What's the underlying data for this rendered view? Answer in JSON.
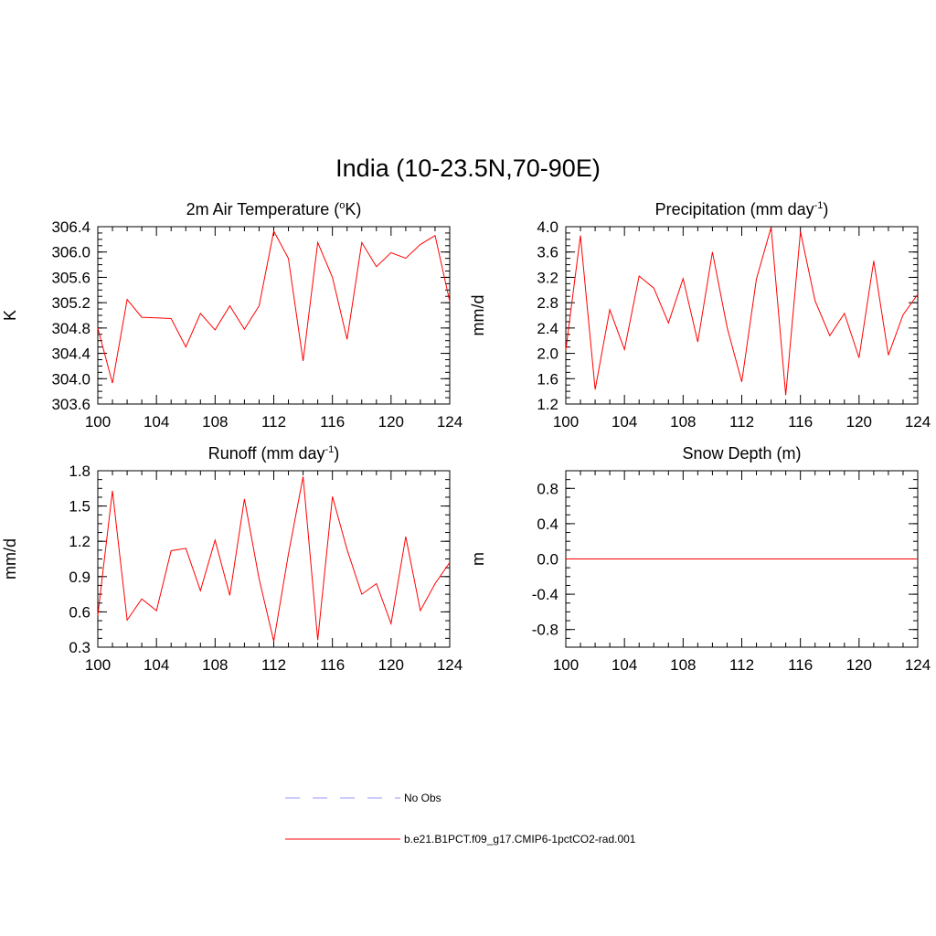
{
  "title": "India (10-23.5N,70-90E)",
  "colors": {
    "series": "#ff0000",
    "obs": "#9999ff",
    "axis": "#000000"
  },
  "legend": [
    {
      "label": "No Obs",
      "style": "dashed",
      "color": "#9999ff"
    },
    {
      "label": "b.e21.B1PCT.f09_g17.CMIP6-1pctCO2-rad.001",
      "style": "solid",
      "color": "#ff0000"
    }
  ],
  "chart_data": [
    {
      "type": "line",
      "title": "2m Air Temperature (",
      "title_sup": "o",
      "title_tail": "K)",
      "ylabel": "K",
      "xlim": [
        100,
        124
      ],
      "ylim": [
        303.6,
        306.4
      ],
      "xticks": [
        "100",
        "104",
        "108",
        "112",
        "116",
        "120",
        "124"
      ],
      "yticks": [
        "303.6",
        "304.0",
        "304.4",
        "304.8",
        "305.2",
        "305.6",
        "306.0",
        "306.4"
      ],
      "x": [
        100,
        101,
        102,
        103,
        104,
        105,
        106,
        107,
        108,
        109,
        110,
        111,
        112,
        113,
        114,
        115,
        116,
        117,
        118,
        119,
        120,
        121,
        122,
        123,
        124
      ],
      "series": [
        {
          "values": [
            304.8,
            303.93,
            305.25,
            304.97,
            304.96,
            304.95,
            304.5,
            305.03,
            304.77,
            305.15,
            304.78,
            305.15,
            306.33,
            305.9,
            304.28,
            306.15,
            305.6,
            304.62,
            306.15,
            305.77,
            305.99,
            305.9,
            306.12,
            306.26,
            305.22
          ]
        }
      ]
    },
    {
      "type": "line",
      "title": "Precipitation (mm day",
      "title_sup": "-1",
      "title_tail": ")",
      "ylabel": "mm/d",
      "xlim": [
        100,
        124
      ],
      "ylim": [
        1.2,
        4.0
      ],
      "xticks": [
        "100",
        "104",
        "108",
        "112",
        "116",
        "120",
        "124"
      ],
      "yticks": [
        "1.2",
        "1.6",
        "2.0",
        "2.4",
        "2.8",
        "3.2",
        "3.6",
        "4.0"
      ],
      "x": [
        100,
        101,
        102,
        103,
        104,
        105,
        106,
        107,
        108,
        109,
        110,
        111,
        112,
        113,
        114,
        115,
        116,
        117,
        118,
        119,
        120,
        121,
        122,
        123,
        124
      ],
      "series": [
        {
          "values": [
            2.05,
            3.86,
            1.43,
            2.69,
            2.06,
            3.22,
            3.03,
            2.48,
            3.18,
            2.18,
            3.6,
            2.41,
            1.55,
            3.17,
            3.99,
            1.34,
            3.92,
            2.83,
            2.28,
            2.63,
            1.93,
            3.46,
            1.97,
            2.61,
            2.93
          ]
        }
      ]
    },
    {
      "type": "line",
      "title": "Runoff (mm day",
      "title_sup": "-1",
      "title_tail": ")",
      "ylabel": "mm/d",
      "xlim": [
        100,
        124
      ],
      "ylim": [
        0.3,
        1.8
      ],
      "xticks": [
        "100",
        "104",
        "108",
        "112",
        "116",
        "120",
        "124"
      ],
      "yticks": [
        "0.3",
        "0.6",
        "0.9",
        "1.2",
        "1.5",
        "1.8"
      ],
      "x": [
        100,
        101,
        102,
        103,
        104,
        105,
        106,
        107,
        108,
        109,
        110,
        111,
        112,
        113,
        114,
        115,
        116,
        117,
        118,
        119,
        120,
        121,
        122,
        123,
        124
      ],
      "series": [
        {
          "values": [
            0.57,
            1.63,
            0.53,
            0.71,
            0.61,
            1.12,
            1.14,
            0.78,
            1.21,
            0.74,
            1.56,
            0.88,
            0.35,
            1.09,
            1.75,
            0.36,
            1.58,
            1.13,
            0.75,
            0.84,
            0.5,
            1.24,
            0.61,
            0.84,
            1.02
          ]
        }
      ]
    },
    {
      "type": "line",
      "title": "Snow Depth (m)",
      "title_sup": "",
      "title_tail": "",
      "ylabel": "m",
      "xlim": [
        100,
        124
      ],
      "ylim": [
        -1.0,
        1.0
      ],
      "xticks": [
        "100",
        "104",
        "108",
        "112",
        "116",
        "120",
        "124"
      ],
      "yticks": [
        "-0.8",
        "-0.4",
        "0.0",
        "0.4",
        "0.8"
      ],
      "yticks_values": [
        -0.8,
        -0.4,
        0.0,
        0.4,
        0.8
      ],
      "x": [
        100,
        101,
        102,
        103,
        104,
        105,
        106,
        107,
        108,
        109,
        110,
        111,
        112,
        113,
        114,
        115,
        116,
        117,
        118,
        119,
        120,
        121,
        122,
        123,
        124
      ],
      "series": [
        {
          "values": [
            0,
            0,
            0,
            0,
            0,
            0,
            0,
            0,
            0,
            0,
            0,
            0,
            0,
            0,
            0,
            0,
            0,
            0,
            0,
            0,
            0,
            0,
            0,
            0,
            0
          ]
        }
      ]
    }
  ]
}
